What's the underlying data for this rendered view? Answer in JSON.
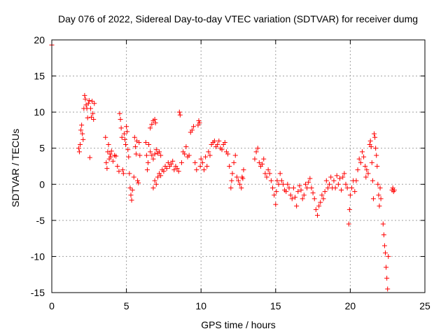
{
  "chart_data": {
    "type": "scatter",
    "title": "Day 076 of 2022, Sidereal Day-to-day VTEC variation (SDTVAR) for receiver dumg",
    "xlabel": "GPS time / hours",
    "ylabel": "SDTVAR / TECUs",
    "xlim": [
      0,
      25
    ],
    "ylim": [
      -15,
      20
    ],
    "x_ticks": [
      "0",
      "5",
      "10",
      "15",
      "20",
      "25"
    ],
    "y_ticks": [
      "20",
      "15",
      "10",
      "5",
      "0",
      "-5",
      "-10",
      "-15"
    ],
    "x_tick_values": [
      0,
      5,
      10,
      15,
      20,
      25
    ],
    "y_tick_values": [
      20,
      15,
      10,
      5,
      0,
      -5,
      -10,
      -15
    ],
    "grid": true,
    "marker": "+",
    "color": "#ff0000",
    "series": [
      {
        "name": "SDTVAR",
        "points": [
          [
            0.0,
            19.3
          ],
          [
            1.8,
            5.0
          ],
          [
            1.85,
            4.5
          ],
          [
            1.9,
            5.5
          ],
          [
            1.95,
            7.5
          ],
          [
            2.0,
            8.2
          ],
          [
            2.05,
            7.0
          ],
          [
            2.1,
            6.2
          ],
          [
            2.15,
            10.5
          ],
          [
            2.2,
            12.3
          ],
          [
            2.25,
            11.8
          ],
          [
            2.3,
            11.0
          ],
          [
            2.35,
            10.5
          ],
          [
            2.4,
            9.2
          ],
          [
            2.45,
            11.2
          ],
          [
            2.5,
            11.6
          ],
          [
            2.55,
            3.7
          ],
          [
            2.6,
            10.5
          ],
          [
            2.65,
            9.3
          ],
          [
            2.7,
            11.5
          ],
          [
            2.75,
            9.8
          ],
          [
            2.8,
            9.0
          ],
          [
            2.85,
            11.2
          ],
          [
            3.6,
            6.5
          ],
          [
            3.65,
            3.0
          ],
          [
            3.7,
            2.2
          ],
          [
            3.75,
            4.5
          ],
          [
            3.8,
            5.5
          ],
          [
            3.85,
            3.5
          ],
          [
            3.9,
            4.2
          ],
          [
            3.95,
            3.8
          ],
          [
            4.0,
            4.6
          ],
          [
            4.1,
            3.2
          ],
          [
            4.2,
            4.0
          ],
          [
            4.3,
            3.9
          ],
          [
            4.4,
            2.5
          ],
          [
            4.5,
            1.8
          ],
          [
            4.55,
            9.8
          ],
          [
            4.6,
            9.0
          ],
          [
            4.65,
            7.8
          ],
          [
            4.7,
            6.5
          ],
          [
            4.75,
            2.0
          ],
          [
            4.8,
            1.5
          ],
          [
            4.85,
            7.0
          ],
          [
            4.9,
            6.2
          ],
          [
            4.95,
            5.5
          ],
          [
            5.0,
            8.0
          ],
          [
            5.05,
            7.3
          ],
          [
            5.1,
            4.8
          ],
          [
            5.15,
            3.8
          ],
          [
            5.2,
            1.5
          ],
          [
            5.25,
            -0.5
          ],
          [
            5.3,
            -1.5
          ],
          [
            5.35,
            -2.2
          ],
          [
            5.4,
            -0.8
          ],
          [
            5.5,
            1.0
          ],
          [
            5.55,
            6.5
          ],
          [
            5.6,
            5.2
          ],
          [
            5.65,
            4.2
          ],
          [
            5.7,
            6.0
          ],
          [
            5.75,
            0.5
          ],
          [
            5.8,
            0.2
          ],
          [
            5.85,
            5.8
          ],
          [
            5.9,
            4.0
          ],
          [
            6.3,
            5.8
          ],
          [
            6.35,
            4.0
          ],
          [
            6.4,
            2.0
          ],
          [
            6.45,
            3.0
          ],
          [
            6.5,
            5.5
          ],
          [
            6.6,
            7.8
          ],
          [
            6.7,
            8.3
          ],
          [
            6.8,
            8.8
          ],
          [
            6.9,
            9.0
          ],
          [
            6.95,
            8.5
          ],
          [
            6.6,
            4.5
          ],
          [
            6.7,
            4.0
          ],
          [
            6.8,
            3.5
          ],
          [
            6.9,
            4.2
          ],
          [
            7.0,
            4.8
          ],
          [
            7.1,
            4.3
          ],
          [
            7.2,
            4.5
          ],
          [
            7.3,
            4.0
          ],
          [
            6.8,
            -0.5
          ],
          [
            6.9,
            0.5
          ],
          [
            7.0,
            0.0
          ],
          [
            7.1,
            1.0
          ],
          [
            7.2,
            1.5
          ],
          [
            7.3,
            1.2
          ],
          [
            7.4,
            2.0
          ],
          [
            7.5,
            1.8
          ],
          [
            7.6,
            2.5
          ],
          [
            7.7,
            2.2
          ],
          [
            7.8,
            3.0
          ],
          [
            7.9,
            2.5
          ],
          [
            8.0,
            2.8
          ],
          [
            8.1,
            3.2
          ],
          [
            8.2,
            2.0
          ],
          [
            8.3,
            2.5
          ],
          [
            8.4,
            2.2
          ],
          [
            8.5,
            1.8
          ],
          [
            8.55,
            10.0
          ],
          [
            8.6,
            9.6
          ],
          [
            8.7,
            3.0
          ],
          [
            8.8,
            4.5
          ],
          [
            8.9,
            4.2
          ],
          [
            9.0,
            5.2
          ],
          [
            9.1,
            3.8
          ],
          [
            9.2,
            4.0
          ],
          [
            9.3,
            7.2
          ],
          [
            9.4,
            7.5
          ],
          [
            9.5,
            8.0
          ],
          [
            9.6,
            3.0
          ],
          [
            9.7,
            2.0
          ],
          [
            9.8,
            8.2
          ],
          [
            9.85,
            8.8
          ],
          [
            9.9,
            8.5
          ],
          [
            9.95,
            2.5
          ],
          [
            10.0,
            3.5
          ],
          [
            10.1,
            3.0
          ],
          [
            10.2,
            2.0
          ],
          [
            10.3,
            3.8
          ],
          [
            10.4,
            2.5
          ],
          [
            10.5,
            4.5
          ],
          [
            10.6,
            4.0
          ],
          [
            10.7,
            5.5
          ],
          [
            10.8,
            5.8
          ],
          [
            10.9,
            6.0
          ],
          [
            11.0,
            5.2
          ],
          [
            11.1,
            5.5
          ],
          [
            11.2,
            6.0
          ],
          [
            11.3,
            5.0
          ],
          [
            11.4,
            4.8
          ],
          [
            11.5,
            5.5
          ],
          [
            11.6,
            5.8
          ],
          [
            11.7,
            4.5
          ],
          [
            11.8,
            4.2
          ],
          [
            11.9,
            2.5
          ],
          [
            12.0,
            -0.5
          ],
          [
            12.05,
            0.5
          ],
          [
            12.1,
            1.5
          ],
          [
            12.2,
            3.0
          ],
          [
            12.3,
            4.0
          ],
          [
            12.4,
            1.0
          ],
          [
            12.5,
            0.5
          ],
          [
            12.6,
            0.0
          ],
          [
            12.7,
            -0.5
          ],
          [
            12.75,
            1.0
          ],
          [
            12.8,
            0.8
          ],
          [
            12.85,
            2.0
          ],
          [
            13.6,
            3.5
          ],
          [
            13.7,
            4.5
          ],
          [
            13.8,
            5.0
          ],
          [
            13.9,
            3.0
          ],
          [
            14.0,
            2.5
          ],
          [
            14.1,
            2.8
          ],
          [
            14.2,
            3.5
          ],
          [
            14.3,
            1.5
          ],
          [
            14.4,
            1.0
          ],
          [
            14.5,
            2.0
          ],
          [
            14.6,
            1.5
          ],
          [
            14.7,
            0.5
          ],
          [
            14.8,
            -0.5
          ],
          [
            14.9,
            -1.5
          ],
          [
            15.0,
            -2.8
          ],
          [
            15.05,
            -1.0
          ],
          [
            15.1,
            0.5
          ],
          [
            15.2,
            0.0
          ],
          [
            15.3,
            1.5
          ],
          [
            15.4,
            0.5
          ],
          [
            15.5,
            0.0
          ],
          [
            15.6,
            -0.8
          ],
          [
            15.7,
            -1.0
          ],
          [
            15.8,
            0.0
          ],
          [
            15.9,
            -0.5
          ],
          [
            16.0,
            -1.5
          ],
          [
            16.1,
            -2.0
          ],
          [
            16.2,
            -0.5
          ],
          [
            16.3,
            -1.8
          ],
          [
            16.4,
            -3.0
          ],
          [
            16.5,
            -1.0
          ],
          [
            16.6,
            -0.2
          ],
          [
            16.7,
            -0.8
          ],
          [
            16.8,
            -2.0
          ],
          [
            16.9,
            -1.5
          ],
          [
            17.0,
            0.0
          ],
          [
            17.1,
            -0.5
          ],
          [
            17.2,
            0.3
          ],
          [
            17.3,
            0.8
          ],
          [
            17.4,
            -0.5
          ],
          [
            17.5,
            -1.2
          ],
          [
            17.6,
            -2.0
          ],
          [
            17.7,
            -3.5
          ],
          [
            17.8,
            -4.3
          ],
          [
            17.9,
            -3.0
          ],
          [
            18.0,
            -2.5
          ],
          [
            18.1,
            -1.5
          ],
          [
            18.2,
            -2.0
          ],
          [
            18.3,
            -1.0
          ],
          [
            18.4,
            0.5
          ],
          [
            18.5,
            -0.5
          ],
          [
            18.6,
            0.0
          ],
          [
            18.7,
            1.0
          ],
          [
            18.8,
            -0.5
          ],
          [
            18.9,
            0.5
          ],
          [
            19.0,
            -0.5
          ],
          [
            19.1,
            1.2
          ],
          [
            19.2,
            0.0
          ],
          [
            19.3,
            0.8
          ],
          [
            19.4,
            -0.8
          ],
          [
            19.5,
            1.0
          ],
          [
            19.6,
            1.5
          ],
          [
            19.7,
            0.0
          ],
          [
            19.8,
            -0.5
          ],
          [
            19.9,
            -5.5
          ],
          [
            19.95,
            -3.5
          ],
          [
            20.0,
            -1.5
          ],
          [
            20.1,
            -0.5
          ],
          [
            20.2,
            0.5
          ],
          [
            20.3,
            -1.0
          ],
          [
            20.4,
            0.5
          ],
          [
            20.5,
            2.0
          ],
          [
            20.6,
            3.5
          ],
          [
            20.7,
            3.0
          ],
          [
            20.8,
            4.5
          ],
          [
            20.9,
            3.8
          ],
          [
            21.0,
            2.5
          ],
          [
            21.05,
            1.0
          ],
          [
            21.1,
            2.0
          ],
          [
            21.2,
            1.5
          ],
          [
            21.3,
            5.5
          ],
          [
            21.35,
            6.0
          ],
          [
            21.4,
            5.2
          ],
          [
            21.45,
            3.0
          ],
          [
            21.5,
            0.5
          ],
          [
            21.55,
            -2.0
          ],
          [
            21.6,
            7.0
          ],
          [
            21.65,
            6.5
          ],
          [
            21.7,
            5.0
          ],
          [
            21.75,
            4.0
          ],
          [
            21.8,
            2.5
          ],
          [
            21.85,
            0.0
          ],
          [
            21.9,
            -1.5
          ],
          [
            21.95,
            -3.0
          ],
          [
            22.0,
            -0.5
          ],
          [
            22.05,
            -2.0
          ],
          [
            22.2,
            -5.5
          ],
          [
            22.25,
            -7.0
          ],
          [
            22.3,
            -8.5
          ],
          [
            22.35,
            -9.5
          ],
          [
            22.4,
            -11.5
          ],
          [
            22.45,
            -13.0
          ],
          [
            22.5,
            -14.5
          ],
          [
            22.55,
            -10.0
          ],
          [
            22.8,
            -0.8
          ],
          [
            22.85,
            -0.5
          ],
          [
            22.9,
            -1.0
          ],
          [
            22.95,
            -0.8
          ]
        ]
      }
    ]
  }
}
